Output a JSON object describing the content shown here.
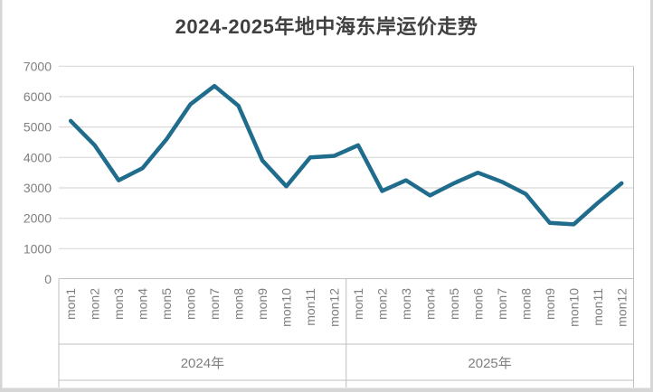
{
  "chart_data": {
    "type": "line",
    "title": "2024-2025年地中海东岸运价走势",
    "xlabel": "",
    "ylabel": "",
    "ylim": [
      0,
      7000
    ],
    "y_ticks": [
      0,
      1000,
      2000,
      3000,
      4000,
      5000,
      6000,
      7000
    ],
    "grid": "horizontal",
    "legend": "none",
    "categories": [
      "mon1",
      "mon2",
      "mon3",
      "mon4",
      "mon5",
      "mon6",
      "mon7",
      "mon8",
      "mon9",
      "mon10",
      "mon11",
      "mon12"
    ],
    "groups": [
      {
        "label": "2024年",
        "values": [
          5200,
          4400,
          3250,
          3650,
          4600,
          5750,
          6350,
          5700,
          3900,
          3050,
          4000,
          4050
        ]
      },
      {
        "label": "2025年",
        "values": [
          4400,
          2900,
          3250,
          2750,
          3150,
          3500,
          3200,
          2800,
          1850,
          1800,
          2500,
          3150
        ]
      }
    ],
    "colors": {
      "line": "#1F6C8C",
      "grid": "#D9D9D9",
      "axis_border": "#BFBFBF",
      "labels": "#7F7F7F",
      "title": "#404040",
      "frame": "#D6D6D6"
    }
  }
}
